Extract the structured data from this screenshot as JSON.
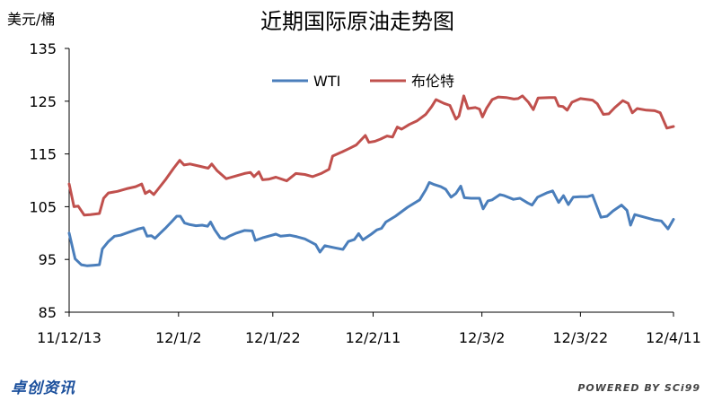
{
  "chart_data": {
    "type": "line",
    "title": "近期国际原油走势图",
    "ylabel": "美元/桶",
    "ylim": [
      85,
      135
    ],
    "yticks": [
      85,
      95,
      105,
      115,
      125,
      135
    ],
    "x_tick_labels": [
      "11/12/13",
      "12/1/2",
      "12/1/22",
      "12/2/11",
      "12/3/2",
      "12/3/22",
      "12/4/11"
    ],
    "legend_position": "top-center",
    "grid": false,
    "x_index_range": [
      0,
      100
    ],
    "x_tick_index": [
      0,
      18.1,
      33.7,
      50.3,
      68.3,
      84.6,
      100
    ],
    "series": [
      {
        "name": "WTI",
        "color": "#4a7ebb",
        "points": [
          [
            0,
            100
          ],
          [
            1,
            95.1
          ],
          [
            2,
            94
          ],
          [
            3,
            93.8
          ],
          [
            4,
            93.9
          ],
          [
            5,
            94
          ],
          [
            5.5,
            97
          ],
          [
            6.5,
            98.4
          ],
          [
            7.5,
            99.4
          ],
          [
            8.5,
            99.6
          ],
          [
            10,
            100.2
          ],
          [
            11.5,
            100.8
          ],
          [
            12.3,
            101
          ],
          [
            12.9,
            99.4
          ],
          [
            13.6,
            99.5
          ],
          [
            14.2,
            99
          ],
          [
            15,
            99.9
          ],
          [
            16,
            101
          ],
          [
            17,
            102.2
          ],
          [
            17.8,
            103.2
          ],
          [
            18.4,
            103.2
          ],
          [
            19.1,
            101.9
          ],
          [
            20,
            101.6
          ],
          [
            21,
            101.4
          ],
          [
            22,
            101.5
          ],
          [
            22.9,
            101.3
          ],
          [
            23.4,
            102.1
          ],
          [
            24.1,
            100.6
          ],
          [
            25,
            99.1
          ],
          [
            25.7,
            98.9
          ],
          [
            26.5,
            99.4
          ],
          [
            27.7,
            100
          ],
          [
            29,
            100.5
          ],
          [
            30.3,
            100.4
          ],
          [
            30.8,
            98.6
          ],
          [
            32,
            99.1
          ],
          [
            34.2,
            99.8
          ],
          [
            35,
            99.4
          ],
          [
            36.5,
            99.6
          ],
          [
            37.7,
            99.3
          ],
          [
            39,
            98.9
          ],
          [
            40,
            98.3
          ],
          [
            40.8,
            97.8
          ],
          [
            41.5,
            96.4
          ],
          [
            42.3,
            97.6
          ],
          [
            44,
            97.2
          ],
          [
            45.3,
            96.9
          ],
          [
            46.2,
            98.4
          ],
          [
            47.2,
            98.8
          ],
          [
            47.9,
            99.9
          ],
          [
            48.6,
            98.7
          ],
          [
            50,
            99.8
          ],
          [
            50.9,
            100.6
          ],
          [
            51.7,
            100.9
          ],
          [
            52.4,
            102.1
          ],
          [
            54,
            103.2
          ],
          [
            56,
            104.9
          ],
          [
            58,
            106.3
          ],
          [
            59,
            108.2
          ],
          [
            59.6,
            109.6
          ],
          [
            60.4,
            109.2
          ],
          [
            61.5,
            108.8
          ],
          [
            62.3,
            108.3
          ],
          [
            63.2,
            106.8
          ],
          [
            64,
            107.5
          ],
          [
            64.8,
            108.9
          ],
          [
            65.4,
            106.7
          ],
          [
            66.5,
            106.6
          ],
          [
            67.9,
            106.6
          ],
          [
            68.5,
            104.6
          ],
          [
            69.3,
            106.1
          ],
          [
            70,
            106.3
          ],
          [
            71.3,
            107.3
          ],
          [
            72,
            107.1
          ],
          [
            73.5,
            106.4
          ],
          [
            74.6,
            106.6
          ],
          [
            75.9,
            105.7
          ],
          [
            76.6,
            105.3
          ],
          [
            77.5,
            106.8
          ],
          [
            79,
            107.6
          ],
          [
            80,
            108
          ],
          [
            81,
            105.8
          ],
          [
            81.8,
            107.1
          ],
          [
            82.6,
            105.4
          ],
          [
            83.4,
            106.8
          ],
          [
            84.6,
            106.9
          ],
          [
            85.8,
            106.9
          ],
          [
            86.6,
            107.2
          ],
          [
            88,
            103
          ],
          [
            89,
            103.2
          ],
          [
            90,
            104.2
          ],
          [
            91.4,
            105.3
          ],
          [
            92.3,
            104.3
          ],
          [
            92.9,
            101.5
          ],
          [
            93.6,
            103.5
          ],
          [
            94.9,
            103.1
          ],
          [
            96.8,
            102.5
          ],
          [
            98,
            102.3
          ],
          [
            99.1,
            100.8
          ],
          [
            100,
            102.6
          ]
        ]
      },
      {
        "name": "布伦特",
        "color": "#c0504d",
        "points": [
          [
            0,
            109.3
          ],
          [
            0.8,
            105
          ],
          [
            1.5,
            105.1
          ],
          [
            2.5,
            103.4
          ],
          [
            3.5,
            103.5
          ],
          [
            5,
            103.7
          ],
          [
            5.7,
            106.6
          ],
          [
            6.5,
            107.6
          ],
          [
            8,
            107.9
          ],
          [
            9.5,
            108.4
          ],
          [
            11,
            108.8
          ],
          [
            12,
            109.3
          ],
          [
            12.6,
            107.5
          ],
          [
            13.3,
            108
          ],
          [
            14,
            107.3
          ],
          [
            14.7,
            108.3
          ],
          [
            16,
            110.2
          ],
          [
            17.3,
            112.3
          ],
          [
            18.3,
            113.8
          ],
          [
            19,
            112.9
          ],
          [
            20,
            113.1
          ],
          [
            21.5,
            112.7
          ],
          [
            23,
            112.3
          ],
          [
            23.6,
            113.1
          ],
          [
            24.5,
            111.8
          ],
          [
            26,
            110.3
          ],
          [
            27.5,
            110.8
          ],
          [
            29,
            111.3
          ],
          [
            30,
            111.5
          ],
          [
            30.6,
            110.7
          ],
          [
            31.4,
            111.6
          ],
          [
            32,
            110.1
          ],
          [
            33,
            110.2
          ],
          [
            34.2,
            110.6
          ],
          [
            35.5,
            110.1
          ],
          [
            36,
            109.9
          ],
          [
            37.5,
            111.3
          ],
          [
            39,
            111.1
          ],
          [
            40.3,
            110.7
          ],
          [
            41.7,
            111.3
          ],
          [
            43,
            112.1
          ],
          [
            43.6,
            114.6
          ],
          [
            45,
            115.3
          ],
          [
            46.3,
            116
          ],
          [
            47.5,
            116.7
          ],
          [
            49,
            118.5
          ],
          [
            49.6,
            117.2
          ],
          [
            50.6,
            117.4
          ],
          [
            51.5,
            117.8
          ],
          [
            52.6,
            118.4
          ],
          [
            53.5,
            118.2
          ],
          [
            54.3,
            120.1
          ],
          [
            55,
            119.7
          ],
          [
            56.3,
            120.6
          ],
          [
            57.6,
            121.3
          ],
          [
            59,
            122.5
          ],
          [
            60,
            124
          ],
          [
            60.7,
            125.3
          ],
          [
            62,
            124.6
          ],
          [
            63,
            124.2
          ],
          [
            64,
            121.6
          ],
          [
            64.5,
            122.2
          ],
          [
            65.3,
            126
          ],
          [
            66,
            123.6
          ],
          [
            67.2,
            123.8
          ],
          [
            67.9,
            123.5
          ],
          [
            68.4,
            122
          ],
          [
            69.1,
            123.7
          ],
          [
            70,
            125.3
          ],
          [
            71,
            125.8
          ],
          [
            72.3,
            125.7
          ],
          [
            73.6,
            125.4
          ],
          [
            74.3,
            125.5
          ],
          [
            75,
            126
          ],
          [
            76,
            124.8
          ],
          [
            76.8,
            123.4
          ],
          [
            77.6,
            125.6
          ],
          [
            79.5,
            125.7
          ],
          [
            80.4,
            125.7
          ],
          [
            81,
            124.1
          ],
          [
            81.7,
            124
          ],
          [
            82.4,
            123.3
          ],
          [
            83.2,
            124.8
          ],
          [
            84.6,
            125.5
          ],
          [
            85.9,
            125.3
          ],
          [
            86.6,
            125.2
          ],
          [
            87.4,
            124.5
          ],
          [
            88.4,
            122.5
          ],
          [
            89.3,
            122.6
          ],
          [
            90.3,
            123.8
          ],
          [
            91.6,
            125.1
          ],
          [
            92.5,
            124.6
          ],
          [
            93.2,
            122.8
          ],
          [
            94,
            123.6
          ],
          [
            95.5,
            123.3
          ],
          [
            96.9,
            123.2
          ],
          [
            97.8,
            122.8
          ],
          [
            98.9,
            119.9
          ],
          [
            100,
            120.2
          ]
        ]
      }
    ]
  },
  "footer": {
    "logo_text": "卓创资讯",
    "powered_by": "POWERED BY SCi99"
  }
}
